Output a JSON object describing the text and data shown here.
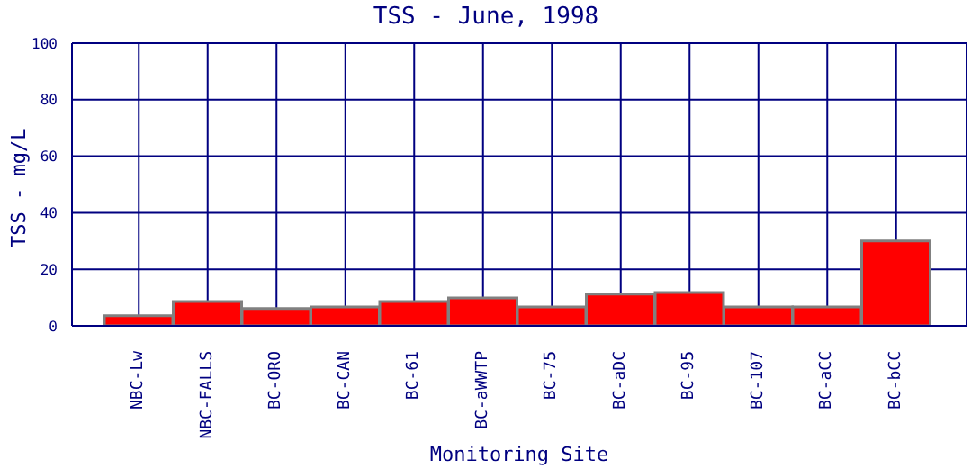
{
  "chart_data": {
    "type": "bar",
    "title": "TSS - June, 1998",
    "xlabel": "Monitoring Site",
    "ylabel": "TSS - mg/L",
    "categories": [
      "NBC-Lw",
      "NBC-FALLS",
      "BC-ORO",
      "BC-CAN",
      "BC-61",
      "BC-aWWTP",
      "BC-75",
      "BC-aDC",
      "BC-95",
      "BC-107",
      "BC-aCC",
      "BC-bCC"
    ],
    "values": [
      3.6,
      8.6,
      6.1,
      6.7,
      8.6,
      9.9,
      6.7,
      11.2,
      11.8,
      6.7,
      6.7,
      30
    ],
    "color": "#ff0000",
    "ylim": [
      0,
      100
    ],
    "yticks": [
      0,
      20,
      40,
      60,
      80,
      100
    ],
    "grid": true
  }
}
